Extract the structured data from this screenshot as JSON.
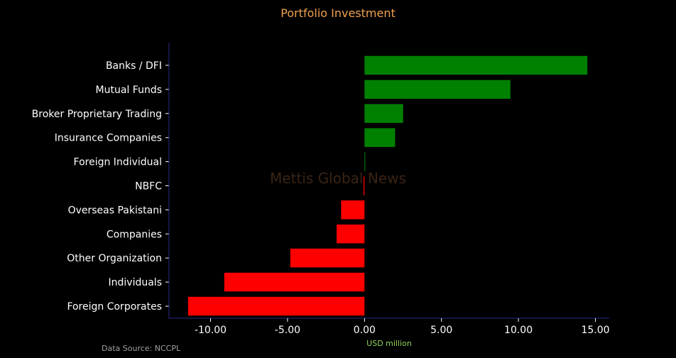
{
  "chart_data": {
    "type": "bar",
    "orientation": "horizontal",
    "title": "Portfolio Investment",
    "xlabel": "USD million",
    "ylabel": "",
    "watermark": "Mettis Global News",
    "source": "Data Source: NCCPL",
    "xlim": [
      -12.7,
      15.9
    ],
    "x_ticks": [
      -10,
      -5,
      0,
      5,
      10,
      15
    ],
    "x_tick_labels": [
      "-10.00",
      "-5.00",
      "0.00",
      "5.00",
      "10.00",
      "15.00"
    ],
    "grid": false,
    "categories": [
      "Banks / DFI",
      "Mutual Funds",
      "Broker Proprietary Trading",
      "Insurance Companies",
      "Foreign Individual",
      "NBFC",
      "Overseas Pakistani",
      "Companies",
      "Other Organization",
      "Individuals",
      "Foreign Corporates"
    ],
    "values": [
      14.48,
      9.48,
      2.51,
      1.99,
      0.05,
      -0.06,
      -1.52,
      -1.81,
      -4.82,
      -9.11,
      -11.46
    ],
    "colors": {
      "positive": "#008000",
      "negative": "#ff0000"
    }
  },
  "style": {
    "background": "#000000",
    "title_color": "#f0a050",
    "text_color": "#ffffff",
    "axis_color": "#2a2a8a",
    "xlabel_color": "#8fd45a",
    "watermark_color": "#3a2414",
    "source_color": "#a0a0a0"
  }
}
